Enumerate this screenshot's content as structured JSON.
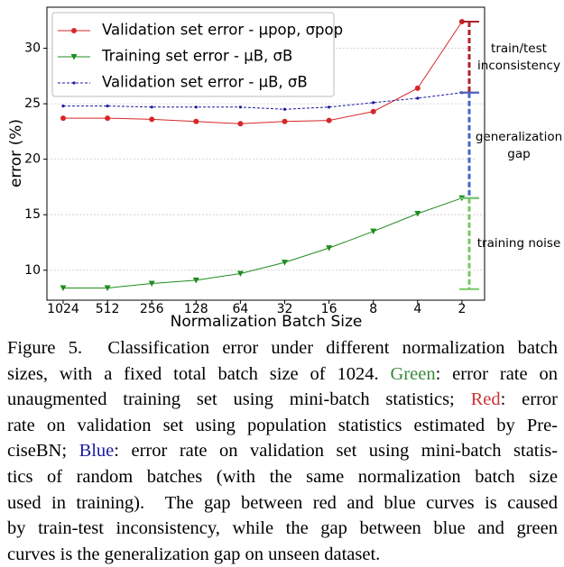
{
  "chart_data": {
    "type": "line",
    "x_label": "Normalization Batch Size",
    "y_label": "error (%)",
    "categories": [
      "1024",
      "512",
      "256",
      "128",
      "64",
      "32",
      "16",
      "8",
      "4",
      "2"
    ],
    "series": [
      {
        "name": "Validation set error - μpop, σpop",
        "color": "#d62728",
        "marker": "circle",
        "dash": false,
        "values": [
          23.7,
          23.7,
          23.6,
          23.4,
          23.2,
          23.4,
          23.5,
          24.3,
          26.4,
          32.4
        ]
      },
      {
        "name": "Training set error - μB, σB",
        "color": "#1f8c1f",
        "marker": "triangle-down",
        "dash": false,
        "values": [
          8.4,
          8.4,
          8.8,
          9.1,
          9.7,
          10.7,
          12.0,
          13.5,
          15.1,
          16.5
        ]
      },
      {
        "name": "Validation set error - μB, σB",
        "color": "#1a1aa0",
        "marker": "dot",
        "dash": true,
        "values": [
          24.8,
          24.8,
          24.7,
          24.7,
          24.7,
          24.5,
          24.7,
          25.1,
          25.5,
          26.0
        ]
      }
    ],
    "ylim": [
      7.3,
      33.7
    ],
    "yticks": [
      10,
      15,
      20,
      25,
      30
    ],
    "grid": true,
    "legend": "upper left",
    "annotations": [
      {
        "label": [
          "train/test",
          "inconsistency"
        ],
        "from": 32.4,
        "to": 26.0,
        "color": "#b0202c"
      },
      {
        "label": [
          "generalization",
          "gap"
        ],
        "from": 26.0,
        "to": 16.5,
        "color": "#4466cc"
      },
      {
        "label": [
          "training noise"
        ],
        "from": 16.5,
        "to": 8.3,
        "color": "#77c766"
      }
    ]
  },
  "caption": {
    "lines": [
      [
        {
          "text": "Figure 5.  Classification error under different normalization batch"
        }
      ],
      [
        {
          "text": "sizes, with a fixed total batch size of 1024. "
        },
        {
          "text": "Green",
          "color": "#3a8a3a"
        },
        {
          "text": ": error rate on"
        }
      ],
      [
        {
          "text": "unaugmented training set using mini-batch statistics; "
        },
        {
          "text": "Red",
          "color": "#cc3333"
        },
        {
          "text": ": error"
        }
      ],
      [
        {
          "text": "rate on validation set using population statistics estimated by Pre-"
        }
      ],
      [
        {
          "text": "ciseBN; "
        },
        {
          "text": "Blue",
          "color": "#1a1aa0"
        },
        {
          "text": ": error rate on validation set using mini-batch statis-"
        }
      ],
      [
        {
          "text": "tics of random batches (with the same normalization batch size"
        }
      ],
      [
        {
          "text": "used in training).  The gap between red and blue curves is caused"
        }
      ],
      [
        {
          "text": "by train-test inconsistency, while the gap between blue and green"
        }
      ],
      [
        {
          "text": "curves is the generalization gap on unseen dataset."
        }
      ]
    ]
  }
}
